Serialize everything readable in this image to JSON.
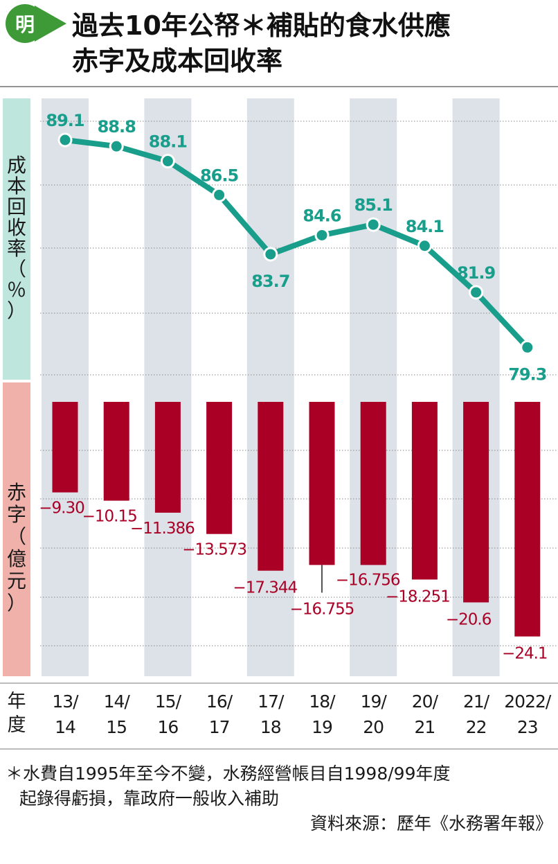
{
  "badge": "明",
  "title": [
    "過去10年公帑＊補貼的食水供應",
    "赤字及成本回收率"
  ],
  "panel_labels": {
    "recovery": [
      "成",
      "本",
      "回",
      "收",
      "率",
      "（",
      "％",
      "）"
    ],
    "deficit": [
      "赤",
      "字",
      "（",
      "億",
      "元",
      "）"
    ],
    "year": [
      "年",
      "度"
    ]
  },
  "categories": [
    [
      "13/",
      "14"
    ],
    [
      "14/",
      "15"
    ],
    [
      "15/",
      "16"
    ],
    [
      "16/",
      "17"
    ],
    [
      "17/",
      "18"
    ],
    [
      "18/",
      "19"
    ],
    [
      "19/",
      "20"
    ],
    [
      "20/",
      "21"
    ],
    [
      "21/",
      "22"
    ],
    [
      "2022/",
      "23"
    ]
  ],
  "chart_data": [
    {
      "type": "line",
      "ylabel": "成本回收率（％）",
      "categories": [
        "13/14",
        "14/15",
        "15/16",
        "16/17",
        "17/18",
        "18/19",
        "19/20",
        "20/21",
        "21/22",
        "2022/23"
      ],
      "values": [
        89.1,
        88.8,
        88.1,
        86.5,
        83.7,
        84.6,
        85.1,
        84.1,
        81.9,
        79.3
      ],
      "labels": [
        "89.1",
        "88.8",
        "88.1",
        "86.5",
        "83.7",
        "84.6",
        "85.1",
        "84.1",
        "81.9",
        "79.3"
      ],
      "color": "#1a9e8c"
    },
    {
      "type": "bar",
      "ylabel": "赤字（億元）",
      "categories": [
        "13/14",
        "14/15",
        "15/16",
        "16/17",
        "17/18",
        "18/19",
        "19/20",
        "20/21",
        "21/22",
        "2022/23"
      ],
      "values": [
        -9.3,
        -10.15,
        -11.386,
        -13.573,
        -17.344,
        -16.755,
        -16.756,
        -18.251,
        -20.6,
        -24.1
      ],
      "labels": [
        "−9.30",
        "−10.15",
        "−11.386",
        "−13.573",
        "−17.344",
        "−16.755",
        "−16.756",
        "−18.251",
        "−20.6",
        "−24.1"
      ],
      "color": "#ab0026"
    }
  ],
  "colors": {
    "teal": "#1a9e8c",
    "teal_panel": "#bfe6dc",
    "red": "#ab0026",
    "pink_panel": "#f0b1aa",
    "column_shade": "#dce2e8",
    "badge_green": "#3d9a36"
  },
  "footnote": [
    "＊水費自1995年至今不變，水務經營帳目自1998/99年度",
    "起錄得虧損，靠政府一般收入補助"
  ],
  "source": "資料來源：歷年《水務署年報》"
}
